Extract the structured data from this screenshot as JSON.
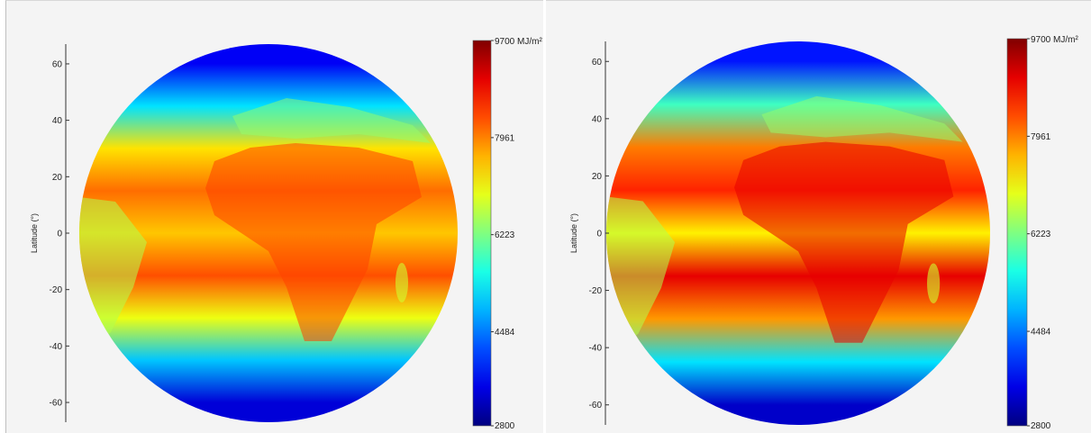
{
  "chart_data": [
    {
      "type": "heatmap",
      "ylabel": "Latitude (°)",
      "ylim": [
        -67,
        67
      ],
      "y_ticks": [
        60,
        40,
        20,
        0,
        -20,
        -40,
        -60
      ],
      "colorbar": {
        "min": 2800,
        "max": 9700,
        "ticks": [
          {
            "value": 9700,
            "label": "9700 MJ/m²"
          },
          {
            "value": 7961,
            "label": "7961"
          },
          {
            "value": 6223,
            "label": "6223"
          },
          {
            "value": 4484,
            "label": "4484"
          },
          {
            "value": 2800,
            "label": "2800"
          }
        ],
        "colormap": "jet"
      },
      "latitude_profile": [
        {
          "lat": 60,
          "value": 3600
        },
        {
          "lat": 45,
          "value": 5200
        },
        {
          "lat": 30,
          "value": 7300
        },
        {
          "lat": 15,
          "value": 8100
        },
        {
          "lat": 0,
          "value": 7500
        },
        {
          "lat": -15,
          "value": 8300
        },
        {
          "lat": -30,
          "value": 7000
        },
        {
          "lat": -45,
          "value": 5000
        },
        {
          "lat": -60,
          "value": 3400
        }
      ]
    },
    {
      "type": "heatmap",
      "ylabel": "Latitude (°)",
      "ylim": [
        -67,
        67
      ],
      "y_ticks": [
        60,
        40,
        20,
        0,
        -20,
        -40,
        -60
      ],
      "colorbar": {
        "min": 2800,
        "max": 9700,
        "ticks": [
          {
            "value": 9700,
            "label": "9700 MJ/m²"
          },
          {
            "value": 7961,
            "label": "7961"
          },
          {
            "value": 6223,
            "label": "6223"
          },
          {
            "value": 4484,
            "label": "4484"
          },
          {
            "value": 2800,
            "label": "2800"
          }
        ],
        "colormap": "jet"
      },
      "latitude_profile": [
        {
          "lat": 60,
          "value": 3800
        },
        {
          "lat": 45,
          "value": 5800
        },
        {
          "lat": 30,
          "value": 8000
        },
        {
          "lat": 15,
          "value": 8600
        },
        {
          "lat": 0,
          "value": 7200
        },
        {
          "lat": -15,
          "value": 9000
        },
        {
          "lat": -30,
          "value": 7800
        },
        {
          "lat": -45,
          "value": 5200
        },
        {
          "lat": -60,
          "value": 3300
        }
      ]
    }
  ]
}
